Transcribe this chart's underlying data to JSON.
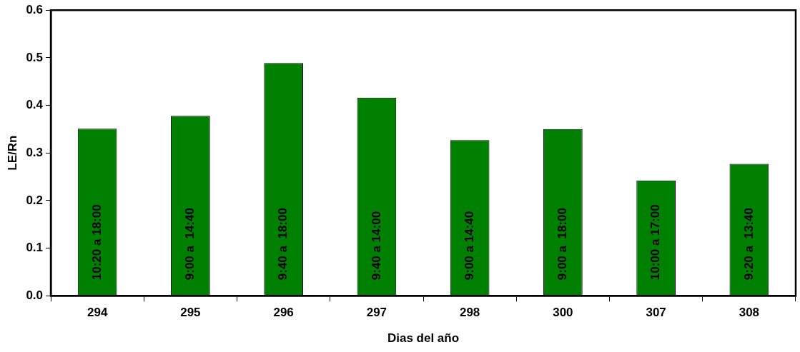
{
  "chart_data": {
    "type": "bar",
    "xlabel": "Dias del año",
    "ylabel": "LE/Rn",
    "categories": [
      "294",
      "295",
      "296",
      "297",
      "298",
      "300",
      "307",
      "308"
    ],
    "values": [
      0.351,
      0.378,
      0.489,
      0.416,
      0.327,
      0.35,
      0.242,
      0.277
    ],
    "color": "#008000",
    "ylim": [
      0,
      0.6
    ],
    "yticks": [
      {
        "value": 0,
        "label": "0.0"
      },
      {
        "value": 0.1,
        "label": "0.1"
      },
      {
        "value": 0.2,
        "label": "0.2"
      },
      {
        "value": 0.3,
        "label": "0.3"
      },
      {
        "value": 0.4,
        "label": "0.4"
      },
      {
        "value": 0.5,
        "label": "0.5"
      },
      {
        "value": 0.6,
        "label": "0.6"
      }
    ],
    "grid": false,
    "legend": false,
    "annotations": [
      "10:20 a 18:00",
      "9:00 a  14:40",
      "9:40 a  18:00",
      "9:40 a 14:00",
      "9:00 a 14:40",
      "9:00 a  18:00",
      "10:00 a 17:00",
      "9:20 a  13:40"
    ]
  }
}
